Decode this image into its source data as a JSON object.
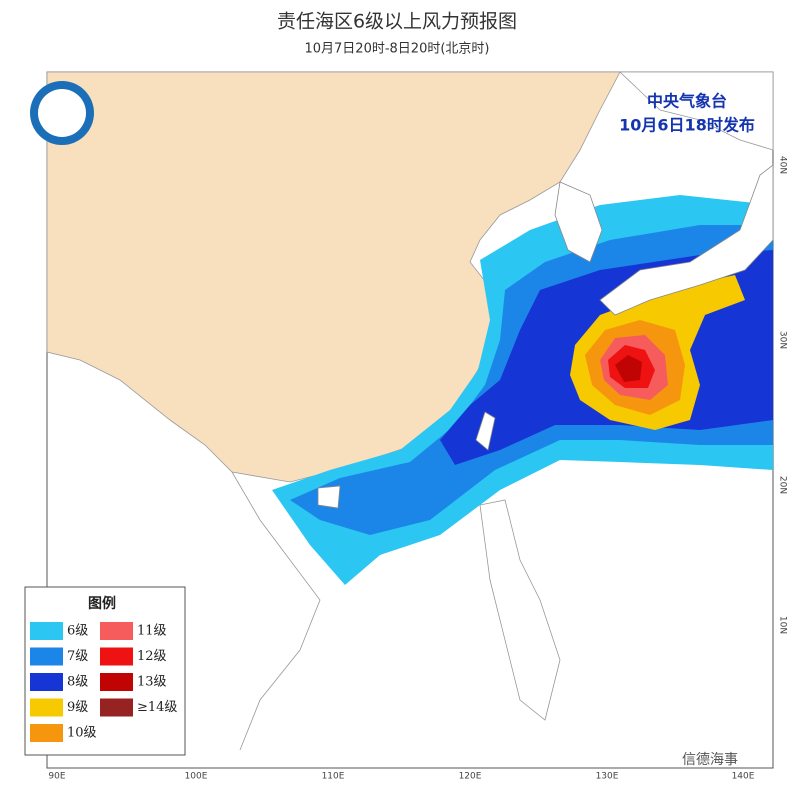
{
  "title": "责任海区6级以上风力预报图",
  "subtitle": "10月7日20时-8日20时(北京时)",
  "issuer": {
    "name": "中央气象台",
    "time": "10月6日18时发布"
  },
  "legend": {
    "title": "图例",
    "items": [
      {
        "label": "6级",
        "color": "#2bc6f2"
      },
      {
        "label": "7级",
        "color": "#1c86e8"
      },
      {
        "label": "8级",
        "color": "#1535d4"
      },
      {
        "label": "9级",
        "color": "#f7c900"
      },
      {
        "label": "10级",
        "color": "#f6960f"
      },
      {
        "label": "11级",
        "color": "#f65c5c"
      },
      {
        "label": "12级",
        "color": "#ee1212"
      },
      {
        "label": "13级",
        "color": "#c00404"
      },
      {
        "label": "≥14级",
        "color": "#962222"
      }
    ]
  },
  "axes": {
    "longitude": [
      "90E",
      "100E",
      "110E",
      "120E",
      "130E",
      "140E"
    ],
    "latitude": [
      "40N",
      "30N",
      "20N",
      "10N"
    ]
  },
  "watermark": "信德海事"
}
